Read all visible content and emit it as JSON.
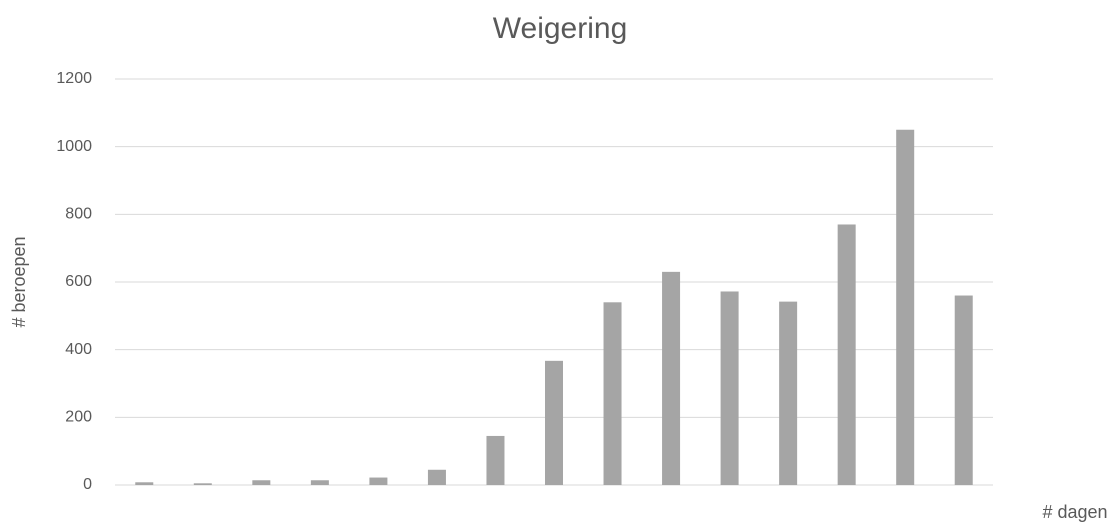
{
  "chart_data": {
    "type": "bar",
    "title": "Weigering",
    "x_label": "# dagen",
    "y_label": "# beroepen",
    "categories": [
      null,
      null,
      null,
      null,
      null,
      null,
      null,
      null,
      null,
      null,
      null,
      null,
      null,
      null,
      null
    ],
    "values": [
      8,
      5,
      14,
      14,
      22,
      45,
      145,
      367,
      540,
      630,
      572,
      542,
      770,
      1050,
      560
    ],
    "color": "#a5a5a5",
    "ylim": [
      0,
      1200
    ],
    "yticks": [
      0,
      200,
      400,
      600,
      800,
      1000,
      1200
    ],
    "grid": true
  }
}
